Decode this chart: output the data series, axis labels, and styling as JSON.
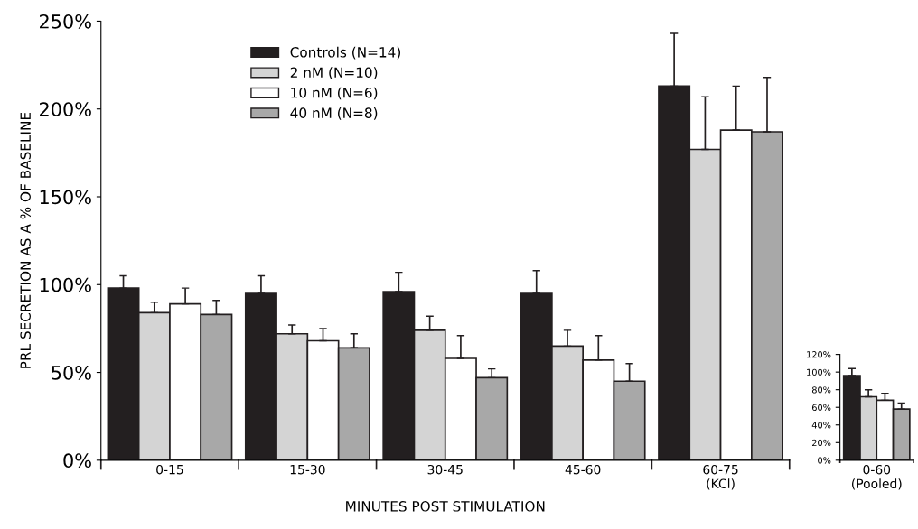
{
  "chart_data": [
    {
      "type": "bar",
      "ylabel": "PRL SECRETION AS A % OF BASELINE",
      "xlabel": "MINUTES POST STIMULATION",
      "categories": [
        "0-15",
        "15-30",
        "30-45",
        "45-60",
        "60-75\n(KCl)"
      ],
      "series": [
        {
          "name": "Controls (N=14)",
          "color": "#231f20",
          "values": [
            98,
            95,
            96,
            95,
            213
          ],
          "errors": [
            [
              98,
              105
            ],
            [
              95,
              105
            ],
            [
              96,
              107
            ],
            [
              95,
              108
            ],
            [
              213,
              243
            ]
          ]
        },
        {
          "name": "2 nM (N=10)",
          "color": "#d4d4d4",
          "values": [
            84,
            72,
            74,
            65,
            177
          ],
          "errors": [
            [
              84,
              90
            ],
            [
              72,
              77
            ],
            [
              74,
              82
            ],
            [
              65,
              74
            ],
            [
              177,
              207
            ]
          ]
        },
        {
          "name": "10 nM (N=6)",
          "color": "#ffffff",
          "values": [
            89,
            68,
            58,
            57,
            188
          ],
          "errors": [
            [
              89,
              98
            ],
            [
              68,
              75
            ],
            [
              58,
              71
            ],
            [
              57,
              71
            ],
            [
              188,
              213
            ]
          ]
        },
        {
          "name": "40 nM (N=8)",
          "color": "#a8a8a8",
          "values": [
            83,
            64,
            47,
            45,
            187
          ],
          "errors": [
            [
              83,
              91
            ],
            [
              64,
              72
            ],
            [
              47,
              52
            ],
            [
              45,
              55
            ],
            [
              187,
              218
            ]
          ]
        }
      ],
      "ylim": [
        0,
        250
      ],
      "yticks": [
        {
          "value": 0,
          "label": "0%"
        },
        {
          "value": 50,
          "label": "50%"
        },
        {
          "value": 100,
          "label": "100%"
        },
        {
          "value": 150,
          "label": "150%"
        },
        {
          "value": 200,
          "label": "200%"
        },
        {
          "value": 250,
          "label": "250%"
        }
      ],
      "legend": "top left",
      "grid": false
    },
    {
      "type": "bar",
      "categories": [
        "0-60\n(Pooled)"
      ],
      "series": [
        {
          "color": "#231f20",
          "values": [
            96
          ],
          "errors": [
            [
              96,
              104
            ]
          ]
        },
        {
          "color": "#d4d4d4",
          "values": [
            72
          ],
          "errors": [
            [
              72,
              80
            ]
          ]
        },
        {
          "color": "#ffffff",
          "values": [
            68
          ],
          "errors": [
            [
              68,
              76
            ]
          ]
        },
        {
          "color": "#a8a8a8",
          "values": [
            58
          ],
          "errors": [
            [
              58,
              65
            ]
          ]
        }
      ],
      "ylim": [
        0,
        120
      ],
      "yticks": [
        {
          "value": 0,
          "label": "0%"
        },
        {
          "value": 20,
          "label": "20%"
        },
        {
          "value": 40,
          "label": "40%"
        },
        {
          "value": 60,
          "label": "60%"
        },
        {
          "value": 80,
          "label": "80%"
        },
        {
          "value": 100,
          "label": "100%"
        },
        {
          "value": 120,
          "label": "120%"
        }
      ],
      "legend": false,
      "grid": false
    }
  ]
}
